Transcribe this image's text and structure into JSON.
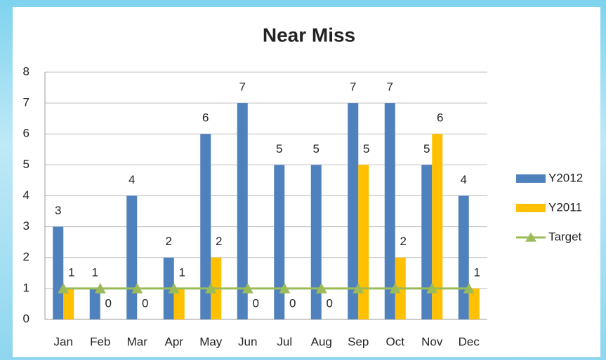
{
  "chart_data": {
    "type": "bar",
    "title": "Near Miss",
    "categories": [
      "Jan",
      "Feb",
      "Mar",
      "Apr",
      "May",
      "Jun",
      "Jul",
      "Aug",
      "Sep",
      "Oct",
      "Nov",
      "Dec"
    ],
    "series": [
      {
        "name": "Y2012",
        "color": "#4f81bd",
        "values": [
          3,
          1,
          4,
          2,
          6,
          7,
          5,
          5,
          7,
          7,
          5,
          4
        ]
      },
      {
        "name": "Y2011",
        "color": "#ffc000",
        "values": [
          1,
          0,
          0,
          1,
          2,
          0,
          0,
          0,
          5,
          2,
          6,
          1
        ]
      },
      {
        "name": "Target",
        "color": "#9bbb59",
        "type": "line",
        "values": [
          1,
          1,
          1,
          1,
          1,
          1,
          1,
          1,
          1,
          1,
          1,
          1
        ]
      }
    ],
    "ylim": [
      0,
      8
    ],
    "yticks": [
      0,
      1,
      2,
      3,
      4,
      5,
      6,
      7,
      8
    ],
    "grid": true,
    "legend": "right"
  }
}
